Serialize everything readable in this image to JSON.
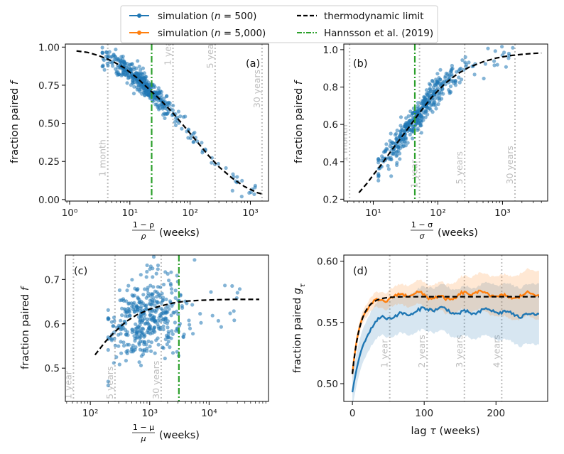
{
  "legend": {
    "entries": [
      {
        "label_prefix": "simulation (",
        "n_label": "n",
        "label_suffix": " = 500)",
        "color": "#1f77b4",
        "style": "line-dot"
      },
      {
        "label_prefix": "simulation (",
        "n_label": "n",
        "label_suffix": " = 5,000)",
        "color": "#ff7f0e",
        "style": "line-dot"
      },
      {
        "label": "thermodynamic limit",
        "color": "#000000",
        "style": "dashed"
      },
      {
        "label": "Hannsson et al. (2019)",
        "color": "#2ca02c",
        "style": "dashdot"
      }
    ]
  },
  "colors": {
    "sim500": "#1f77b4",
    "sim5000": "#ff7f0e",
    "limit": "#000000",
    "hannsson": "#2ca02c",
    "refline": "#bdbdbd"
  },
  "chart_data": [
    {
      "type": "scatter",
      "panel_label": "(a)",
      "xscale": "log",
      "xlim": [
        0.85,
        2000
      ],
      "ylim": [
        -0.01,
        1.02
      ],
      "xticks": [
        1,
        10,
        100,
        1000
      ],
      "xtick_labels": [
        "10⁰",
        "10¹",
        "10²",
        "10³"
      ],
      "yticks": [
        0.0,
        0.25,
        0.5,
        0.75,
        1.0
      ],
      "ytick_labels": [
        "0.00",
        "0.25",
        "0.50",
        "0.75",
        "1.00"
      ],
      "xlabel_num": "1 − ρ",
      "xlabel_den": "ρ",
      "xlabel_unit": "(weeks)",
      "ylabel": "fraction paired ",
      "ylabel_var": "f",
      "ref_lines": [
        {
          "x": 4.3,
          "label": "1 month",
          "label_y": 0.15
        },
        {
          "x": 52,
          "label": "1 year",
          "label_y": 0.88
        },
        {
          "x": 260,
          "label": "5 years",
          "label_y": 0.86
        },
        {
          "x": 1560,
          "label": "30 years",
          "label_y": 0.6
        }
      ],
      "hannsson_x": 23,
      "thermo_curve": {
        "x": [
          1.3,
          2,
          3,
          5,
          8,
          13,
          20,
          30,
          50,
          80,
          130,
          200,
          300,
          500,
          800,
          1300,
          1600
        ],
        "y": [
          0.975,
          0.965,
          0.945,
          0.91,
          0.865,
          0.8,
          0.73,
          0.665,
          0.575,
          0.48,
          0.38,
          0.29,
          0.215,
          0.14,
          0.085,
          0.045,
          0.035
        ]
      },
      "scatter_model": {
        "n": 440,
        "x_range": [
          3.5,
          1300
        ],
        "x_mode": 15,
        "noise": 0.035,
        "model": "f = 1/(1+(x/50)^1.1)"
      }
    },
    {
      "type": "scatter",
      "panel_label": "(b)",
      "xscale": "log",
      "xlim": [
        3.5,
        5000
      ],
      "ylim": [
        0.19,
        1.03
      ],
      "xticks": [
        10,
        100,
        1000
      ],
      "xtick_labels": [
        "10¹",
        "10²",
        "10³"
      ],
      "yticks": [
        0.2,
        0.4,
        0.6,
        0.8,
        1.0
      ],
      "ytick_labels": [
        "0.2",
        "0.4",
        "0.6",
        "0.8",
        "1.0"
      ],
      "xlabel_num": "1 − σ",
      "xlabel_den": "σ",
      "xlabel_unit": "(weeks)",
      "ylabel": "fraction paired ",
      "ylabel_var": "f",
      "ref_lines": [
        {
          "x": 4.3,
          "label": "1 month",
          "label_y": 0.4
        },
        {
          "x": 52,
          "label": "1 year",
          "label_y": 0.26
        },
        {
          "x": 260,
          "label": "5 years",
          "label_y": 0.28
        },
        {
          "x": 1560,
          "label": "30 years",
          "label_y": 0.28
        }
      ],
      "hannsson_x": 44,
      "thermo_curve": {
        "x": [
          6,
          8,
          10,
          13,
          20,
          30,
          50,
          80,
          130,
          200,
          300,
          500,
          800,
          1300,
          2000,
          3000,
          4000
        ],
        "y": [
          0.235,
          0.285,
          0.33,
          0.38,
          0.47,
          0.55,
          0.655,
          0.745,
          0.82,
          0.87,
          0.905,
          0.935,
          0.955,
          0.968,
          0.975,
          0.98,
          0.982
        ]
      },
      "scatter_model": {
        "n": 440,
        "x_range": [
          12,
          2000
        ],
        "x_mode": 50,
        "noise": 0.04,
        "model": "f = 1 - 1/(1+(x/15)^1.0)"
      }
    },
    {
      "type": "scatter",
      "panel_label": "(c)",
      "xscale": "log",
      "xlim": [
        38,
        100000
      ],
      "ylim": [
        0.425,
        0.755
      ],
      "xticks": [
        100,
        1000,
        10000
      ],
      "xtick_labels": [
        "10²",
        "10³",
        "10⁴"
      ],
      "yticks": [
        0.5,
        0.6,
        0.7
      ],
      "ytick_labels": [
        "0.5",
        "0.6",
        "0.7"
      ],
      "xlabel_num": "1 − μ",
      "xlabel_den": "μ",
      "xlabel_unit": "(weeks)",
      "ylabel": "fraction paired ",
      "ylabel_var": "f",
      "ref_lines": [
        {
          "x": 52,
          "label": "1 year",
          "label_y": 0.43
        },
        {
          "x": 260,
          "label": "5 years",
          "label_y": 0.43
        },
        {
          "x": 1560,
          "label": "30 years",
          "label_y": 0.43
        }
      ],
      "hannsson_x": 3100,
      "thermo_curve": {
        "x": [
          120,
          180,
          250,
          400,
          600,
          1000,
          1600,
          2500,
          4000,
          7000,
          12000,
          25000,
          70000
        ],
        "y": [
          0.53,
          0.56,
          0.58,
          0.605,
          0.62,
          0.633,
          0.641,
          0.647,
          0.651,
          0.653,
          0.654,
          0.655,
          0.655
        ]
      },
      "scatter_model": {
        "n": 420,
        "x_range": [
          200,
          40000
        ],
        "x_mode": 900,
        "noise": 0.045,
        "model": "f = thermodynamic limit + noise"
      }
    },
    {
      "type": "line",
      "panel_label": "(d)",
      "xlim": [
        -12,
        272
      ],
      "ylim": [
        0.4855,
        0.605
      ],
      "xticks": [
        0,
        100,
        200
      ],
      "xtick_labels": [
        "0",
        "100",
        "200"
      ],
      "yticks": [
        0.5,
        0.55,
        0.6
      ],
      "ytick_labels": [
        "0.50",
        "0.55",
        "0.60"
      ],
      "xlabel": "lag ",
      "xlabel_var": "τ",
      "xlabel_unit": " (weeks)",
      "ylabel": "fraction paired ",
      "ylabel_var": "g",
      "ylabel_sub": "τ",
      "ref_lines": [
        {
          "x": 52,
          "label": "1 year",
          "label_y": 0.513
        },
        {
          "x": 104,
          "label": "2 years",
          "label_y": 0.513
        },
        {
          "x": 156,
          "label": "3 years",
          "label_y": 0.513
        },
        {
          "x": 208,
          "label": "4 years",
          "label_y": 0.513
        }
      ],
      "series": [
        {
          "name": "simulation (n = 500)",
          "color": "#1f77b4",
          "plateau": 0.5595,
          "start": 0.493,
          "tau": 18,
          "band": [
            0.013,
            0.025
          ]
        },
        {
          "name": "simulation (n = 5,000)",
          "color": "#ff7f0e",
          "plateau": 0.5715,
          "start": 0.508,
          "tau": 11,
          "band": [
            0.004,
            0.02
          ]
        }
      ],
      "thermo_curve": {
        "plateau": 0.571,
        "start": 0.508,
        "tau": 11
      }
    }
  ]
}
